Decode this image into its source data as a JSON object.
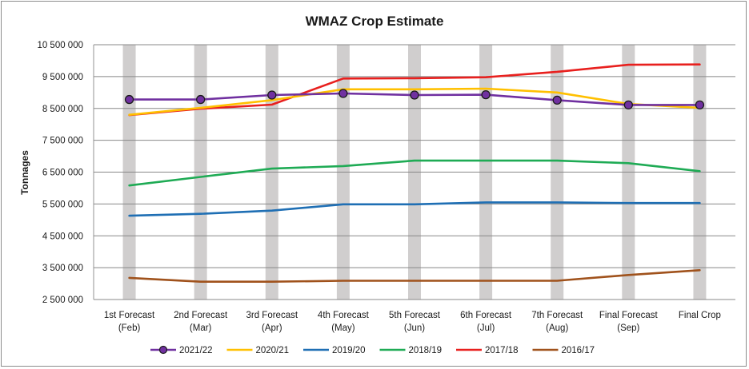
{
  "chart_data": {
    "type": "line",
    "title": "WMAZ Crop Estimate",
    "xlabel": "",
    "ylabel": "Tonnages",
    "ylim": [
      2500000,
      10500000
    ],
    "ytick_values": [
      2500000,
      3500000,
      4500000,
      5500000,
      6500000,
      7500000,
      8500000,
      9500000,
      10500000
    ],
    "ytick_labels": [
      "2 500 000",
      "3 500 000",
      "4 500 000",
      "5 500 000",
      "6 500 000",
      "7 500 000",
      "8 500 000",
      "9 500 000",
      "10 500 000"
    ],
    "categories": [
      [
        "1st Forecast",
        "(Feb)"
      ],
      [
        "2nd Forecast",
        "(Mar)"
      ],
      [
        "3rd Forecast",
        "(Apr)"
      ],
      [
        "4th Forecast",
        "(May)"
      ],
      [
        "5th Forecast",
        "(Jun)"
      ],
      [
        "6th Forecast",
        "(Jul)"
      ],
      [
        "7th Forecast",
        "(Aug)"
      ],
      [
        "Final Forecast",
        "(Sep)"
      ],
      [
        "Final Crop",
        ""
      ]
    ],
    "grid": "horizontal",
    "column_bands": true,
    "legend_position": "bottom",
    "series": [
      {
        "name": "2021/22",
        "color": "#7030a0",
        "marker": true,
        "values": [
          8780000,
          8780000,
          8920000,
          8970000,
          8920000,
          8930000,
          8760000,
          8610000,
          8610000
        ]
      },
      {
        "name": "2020/21",
        "color": "#ffc000",
        "marker": false,
        "values": [
          8300000,
          8520000,
          8760000,
          9100000,
          9100000,
          9120000,
          9000000,
          8640000,
          8520000
        ]
      },
      {
        "name": "2019/20",
        "color": "#1f6fb4",
        "marker": false,
        "values": [
          5130000,
          5190000,
          5290000,
          5490000,
          5490000,
          5550000,
          5550000,
          5530000,
          5530000
        ]
      },
      {
        "name": "2018/19",
        "color": "#1fab55",
        "marker": false,
        "values": [
          6080000,
          6350000,
          6610000,
          6690000,
          6860000,
          6860000,
          6860000,
          6780000,
          6530000
        ]
      },
      {
        "name": "2017/18",
        "color": "#e8201e",
        "marker": false,
        "values": [
          8290000,
          8490000,
          8620000,
          9440000,
          9450000,
          9480000,
          9650000,
          9870000,
          9880000
        ]
      },
      {
        "name": "2016/17",
        "color": "#a0521c",
        "marker": false,
        "values": [
          3180000,
          3060000,
          3060000,
          3090000,
          3090000,
          3090000,
          3090000,
          3270000,
          3420000
        ]
      }
    ]
  }
}
